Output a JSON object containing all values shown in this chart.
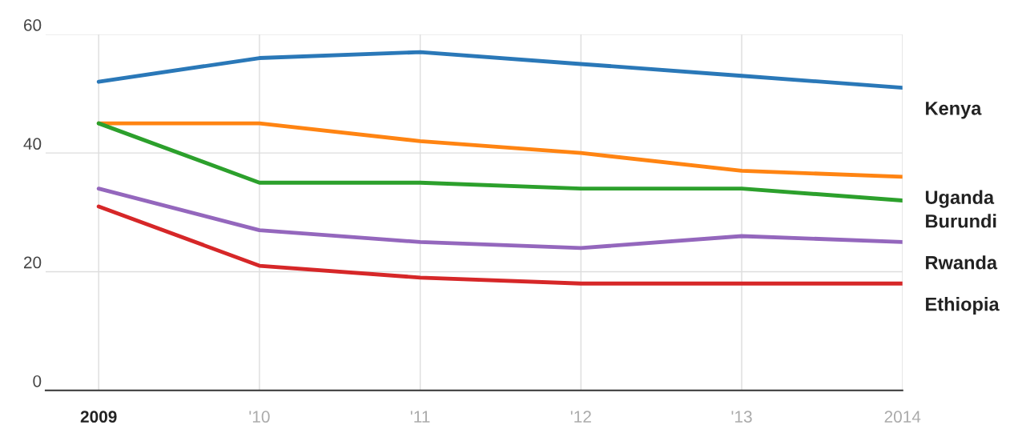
{
  "chart_data": {
    "type": "line",
    "categories": [
      "2009",
      "'10",
      "'11",
      "'12",
      "'13",
      "2014"
    ],
    "series": [
      {
        "name": "Kenya",
        "color": "#2a78b8",
        "values": [
          52,
          56,
          57,
          55,
          53,
          51
        ]
      },
      {
        "name": "Uganda",
        "color": "#ff8412",
        "values": [
          45,
          45,
          42,
          40,
          37,
          36
        ]
      },
      {
        "name": "Burundi",
        "color": "#2ca02c",
        "values": [
          45,
          35,
          35,
          34,
          34,
          32
        ]
      },
      {
        "name": "Rwanda",
        "color": "#9467bd",
        "values": [
          34,
          27,
          25,
          24,
          26,
          25
        ]
      },
      {
        "name": "Ethiopia",
        "color": "#d62728",
        "values": [
          31,
          21,
          19,
          18,
          18,
          18
        ]
      }
    ],
    "ylim": [
      0,
      60
    ],
    "yticks": [
      0,
      20,
      40,
      60
    ],
    "grid": true,
    "legend": false,
    "marker": "none",
    "line_style": "solid"
  }
}
